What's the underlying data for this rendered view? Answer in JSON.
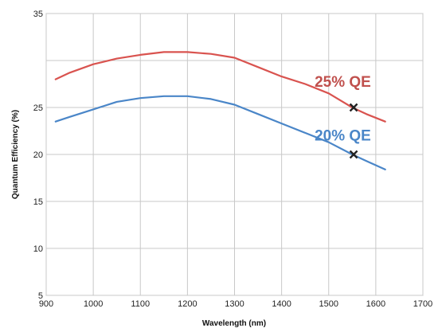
{
  "chart_data": {
    "type": "line",
    "title": "",
    "xlabel": "Wavelength (nm)",
    "ylabel": "Quantum Efficiency (%)",
    "xlim": [
      900,
      1700
    ],
    "ylim": [
      5,
      35
    ],
    "xticks": [
      900,
      1000,
      1100,
      1200,
      1300,
      1400,
      1500,
      1600,
      1700
    ],
    "yticks": [
      5,
      10,
      15,
      20,
      25,
      35
    ],
    "grid": true,
    "legend": "none",
    "series": [
      {
        "color": "#d9534f",
        "x": [
          920,
          950,
          1000,
          1050,
          1100,
          1150,
          1200,
          1250,
          1300,
          1350,
          1400,
          1450,
          1500,
          1550,
          1580,
          1620
        ],
        "y": [
          28.0,
          28.7,
          29.6,
          30.2,
          30.6,
          30.9,
          30.9,
          30.7,
          30.3,
          29.3,
          28.3,
          27.5,
          26.5,
          25.0,
          24.3,
          23.5
        ]
      },
      {
        "color": "#4a86c8",
        "x": [
          920,
          950,
          1000,
          1050,
          1100,
          1150,
          1200,
          1250,
          1300,
          1350,
          1400,
          1450,
          1500,
          1550,
          1580,
          1620
        ],
        "y": [
          23.5,
          24.0,
          24.8,
          25.6,
          26.0,
          26.2,
          26.2,
          25.9,
          25.3,
          24.3,
          23.3,
          22.3,
          21.3,
          20.0,
          19.3,
          18.4
        ]
      }
    ],
    "markers": [
      {
        "x": 1553,
        "y": 25.0,
        "color": "#222222"
      },
      {
        "x": 1553,
        "y": 20.0,
        "color": "#222222"
      }
    ],
    "annotations": [
      {
        "text": "25% QE",
        "x": 1530,
        "y": 27.2,
        "color": "#c0504d"
      },
      {
        "text": "20% QE",
        "x": 1530,
        "y": 21.5,
        "color": "#4a86c8"
      }
    ]
  }
}
